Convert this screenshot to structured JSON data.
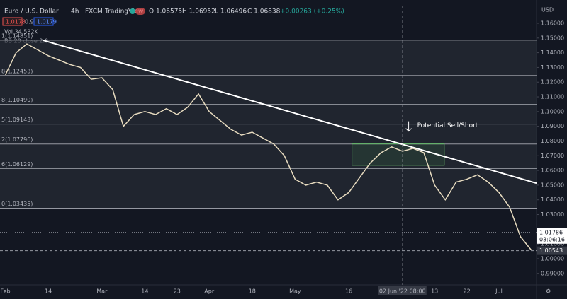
{
  "chart_data": {
    "type": "line",
    "title": "Euro / U.S. Dollar",
    "interval": "4h",
    "source": "FXCM",
    "platform": "TradingView",
    "ohlc": [
      "O 1.06575",
      "H 1.06952",
      "L 1.06496",
      "C 1.06838",
      "+0.00263 (+0.25%)"
    ],
    "sell_price": "1.0178",
    "spread": "0.9",
    "buy_price": "1.0179",
    "indicators": [
      "Vol 34.532K",
      "BB 20 close 2.0"
    ],
    "currency": "USD",
    "categories": [
      "Feb",
      null,
      null,
      null,
      "14",
      null,
      null,
      null,
      null,
      "Mar",
      null,
      null,
      null,
      "14",
      null,
      null,
      "23",
      null,
      null,
      "Apr",
      null,
      null,
      null,
      "18",
      null,
      null,
      null,
      "May",
      null,
      null,
      null,
      null,
      "16",
      null,
      null,
      null,
      null,
      "02 Jun '22  08:00",
      null,
      null,
      "13",
      null,
      null,
      "22",
      null,
      null,
      "Jul",
      null,
      null,
      null
    ],
    "series": [
      {
        "name": "EURUSD",
        "color": "#e8dcc0",
        "values": [
          1.125,
          1.14,
          1.146,
          1.142,
          1.138,
          1.135,
          1.132,
          1.13,
          1.122,
          1.123,
          1.115,
          1.09,
          1.098,
          1.1,
          1.098,
          1.102,
          1.098,
          1.103,
          1.112,
          1.1,
          1.094,
          1.088,
          1.084,
          1.086,
          1.082,
          1.078,
          1.07,
          1.054,
          1.05,
          1.052,
          1.05,
          1.04,
          1.045,
          1.055,
          1.065,
          1.072,
          1.076,
          1.073,
          1.075,
          1.072,
          1.05,
          1.04,
          1.052,
          1.054,
          1.057,
          1.052,
          1.045,
          1.035,
          1.015,
          1.006
        ]
      }
    ],
    "ylim": [
      0.9822,
      1.172
    ],
    "yticks": [
      {
        "value": 1.16,
        "label": "1.16000"
      },
      {
        "value": 1.15,
        "label": "1.15000"
      },
      {
        "value": 1.14,
        "label": "1.14000"
      },
      {
        "value": 1.13,
        "label": "1.13000"
      },
      {
        "value": 1.12,
        "label": "1.12000"
      },
      {
        "value": 1.11,
        "label": "1.11000"
      },
      {
        "value": 1.1,
        "label": "1.10000"
      },
      {
        "value": 1.09,
        "label": "1.09000"
      },
      {
        "value": 1.08,
        "label": "1.08000"
      },
      {
        "value": 1.07,
        "label": "1.07000"
      },
      {
        "value": 1.06,
        "label": "1.06000"
      },
      {
        "value": 1.05,
        "label": "1.05000"
      },
      {
        "value": 1.04,
        "label": "1.04000"
      },
      {
        "value": 1.03,
        "label": "1.03000"
      },
      {
        "value": 1.01,
        "label": "1.01000"
      },
      {
        "value": 1.0,
        "label": "1.00000"
      },
      {
        "value": 0.99,
        "label": "0.99000"
      }
    ],
    "fib_levels": [
      {
        "value": 1.14851,
        "label": "1(1.14851)"
      },
      {
        "value": 1.12453,
        "label": "8(1.12453)"
      },
      {
        "value": 1.1049,
        "label": "8(1.10490)"
      },
      {
        "value": 1.09143,
        "label": "5(1.09143)"
      },
      {
        "value": 1.07796,
        "label": "2(1.07796)"
      },
      {
        "value": 1.06129,
        "label": "6(1.06129)"
      },
      {
        "value": 1.03435,
        "label": "0(1.03435)"
      }
    ],
    "trendline": {
      "x": [
        3.5,
        49.5
      ],
      "y": [
        1.1485,
        1.0513
      ]
    },
    "zone": {
      "x": [
        32.3,
        40.9
      ],
      "y": [
        1.0635,
        1.078
      ]
    },
    "annotation": "Potential Sell/Short",
    "last_price": {
      "value": 1.01786,
      "label": "1.01786",
      "countdown": "03:06:16"
    },
    "crosshair_price": {
      "value": 1.00543,
      "label": "1.00543"
    }
  }
}
